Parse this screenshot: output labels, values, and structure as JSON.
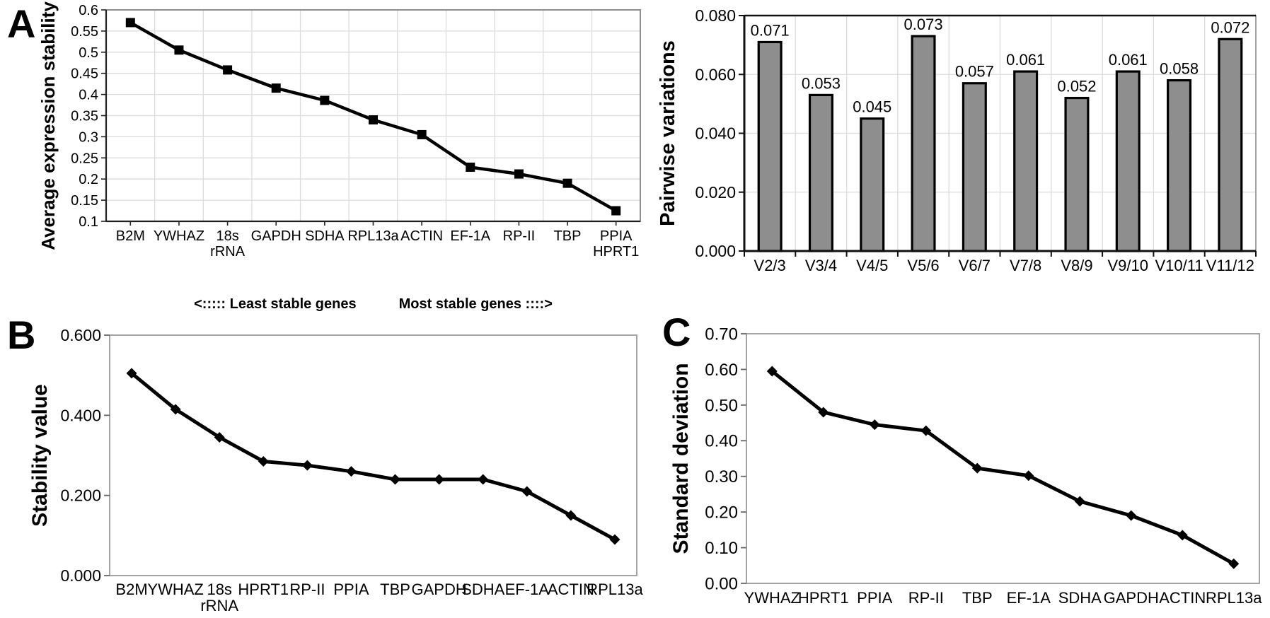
{
  "figure": {
    "panel_a_label": "A",
    "panel_b_label": "B",
    "panel_c_label": "C"
  },
  "colors": {
    "bar_fill": "#8e8e8e",
    "line": "#000000",
    "grid": "#dcdcdc",
    "text": "#000000"
  },
  "chart_data": [
    {
      "id": "panel-a",
      "type": "line",
      "ylabel": "Average expression stability M",
      "categories": [
        "B2M",
        "YWHAZ",
        "18s\nrRNA",
        "GAPDH",
        "SDHA",
        "RPL13a",
        "ACTIN",
        "EF-1A",
        "RP-II",
        "TBP",
        "PPIA\nHPRT1"
      ],
      "values": [
        0.57,
        0.505,
        0.458,
        0.415,
        0.386,
        0.34,
        0.305,
        0.228,
        0.212,
        0.19,
        0.125
      ],
      "marker": "square",
      "ylim": [
        0.1,
        0.6
      ],
      "yticks": [
        0.1,
        0.15,
        0.2,
        0.25,
        0.3,
        0.35,
        0.4,
        0.45,
        0.5,
        0.55,
        0.6
      ],
      "ytick_labels": [
        "0.1",
        "0.15",
        "0.2",
        "0.25",
        "0.3",
        "0.35",
        "0.4",
        "0.45",
        "0.5",
        "0.55",
        "0.6"
      ],
      "grid": true,
      "annotations": [
        "<:::::  Least stable genes",
        "Most stable genes ::::>"
      ]
    },
    {
      "id": "pairwise-variations",
      "type": "bar",
      "ylabel": "Pairwise variations",
      "categories": [
        "V2/3",
        "V3/4",
        "V4/5",
        "V5/6",
        "V6/7",
        "V7/8",
        "V8/9",
        "V9/10",
        "V10/11",
        "V11/12"
      ],
      "values": [
        0.071,
        0.053,
        0.045,
        0.073,
        0.057,
        0.061,
        0.052,
        0.061,
        0.058,
        0.072
      ],
      "value_labels": [
        "0.071",
        "0.053",
        "0.045",
        "0.073",
        "0.057",
        "0.061",
        "0.052",
        "0.061",
        "0.058",
        "0.072"
      ],
      "ylim": [
        0,
        0.08
      ],
      "yticks": [
        0,
        0.02,
        0.04,
        0.06,
        0.08
      ],
      "ytick_labels": [
        "0.000",
        "0.020",
        "0.040",
        "0.060",
        "0.080"
      ],
      "grid": true
    },
    {
      "id": "panel-b",
      "type": "line",
      "ylabel": "Stability value",
      "categories": [
        "B2M",
        "YWHAZ",
        "18s\nrRNA",
        "HPRT1",
        "RP-II",
        "PPIA",
        "TBP",
        "GAPDH",
        "SDHA",
        "EF-1A",
        "ACTIN",
        "RPL13a"
      ],
      "values": [
        0.505,
        0.415,
        0.345,
        0.285,
        0.275,
        0.26,
        0.24,
        0.24,
        0.24,
        0.21,
        0.15,
        0.09
      ],
      "marker": "diamond",
      "ylim": [
        0,
        0.6
      ],
      "yticks": [
        0,
        0.2,
        0.4,
        0.6
      ],
      "ytick_labels": [
        "0.000",
        "0.200",
        "0.400",
        "0.600"
      ],
      "grid": false
    },
    {
      "id": "panel-c",
      "type": "line",
      "ylabel": "Standard deviation",
      "categories": [
        "YWHAZ",
        "HPRT1",
        "PPIA",
        "RP-II",
        "TBP",
        "EF-1A",
        "SDHA",
        "GAPDH",
        "ACTIN",
        "RPL13a"
      ],
      "values": [
        0.595,
        0.48,
        0.445,
        0.428,
        0.323,
        0.302,
        0.23,
        0.19,
        0.135,
        0.055
      ],
      "marker": "diamond",
      "ylim": [
        0,
        0.7
      ],
      "yticks": [
        0,
        0.1,
        0.2,
        0.3,
        0.4,
        0.5,
        0.6,
        0.7
      ],
      "ytick_labels": [
        "0.00",
        "0.10",
        "0.20",
        "0.30",
        "0.40",
        "0.50",
        "0.60",
        "0.70"
      ],
      "grid": false
    }
  ]
}
